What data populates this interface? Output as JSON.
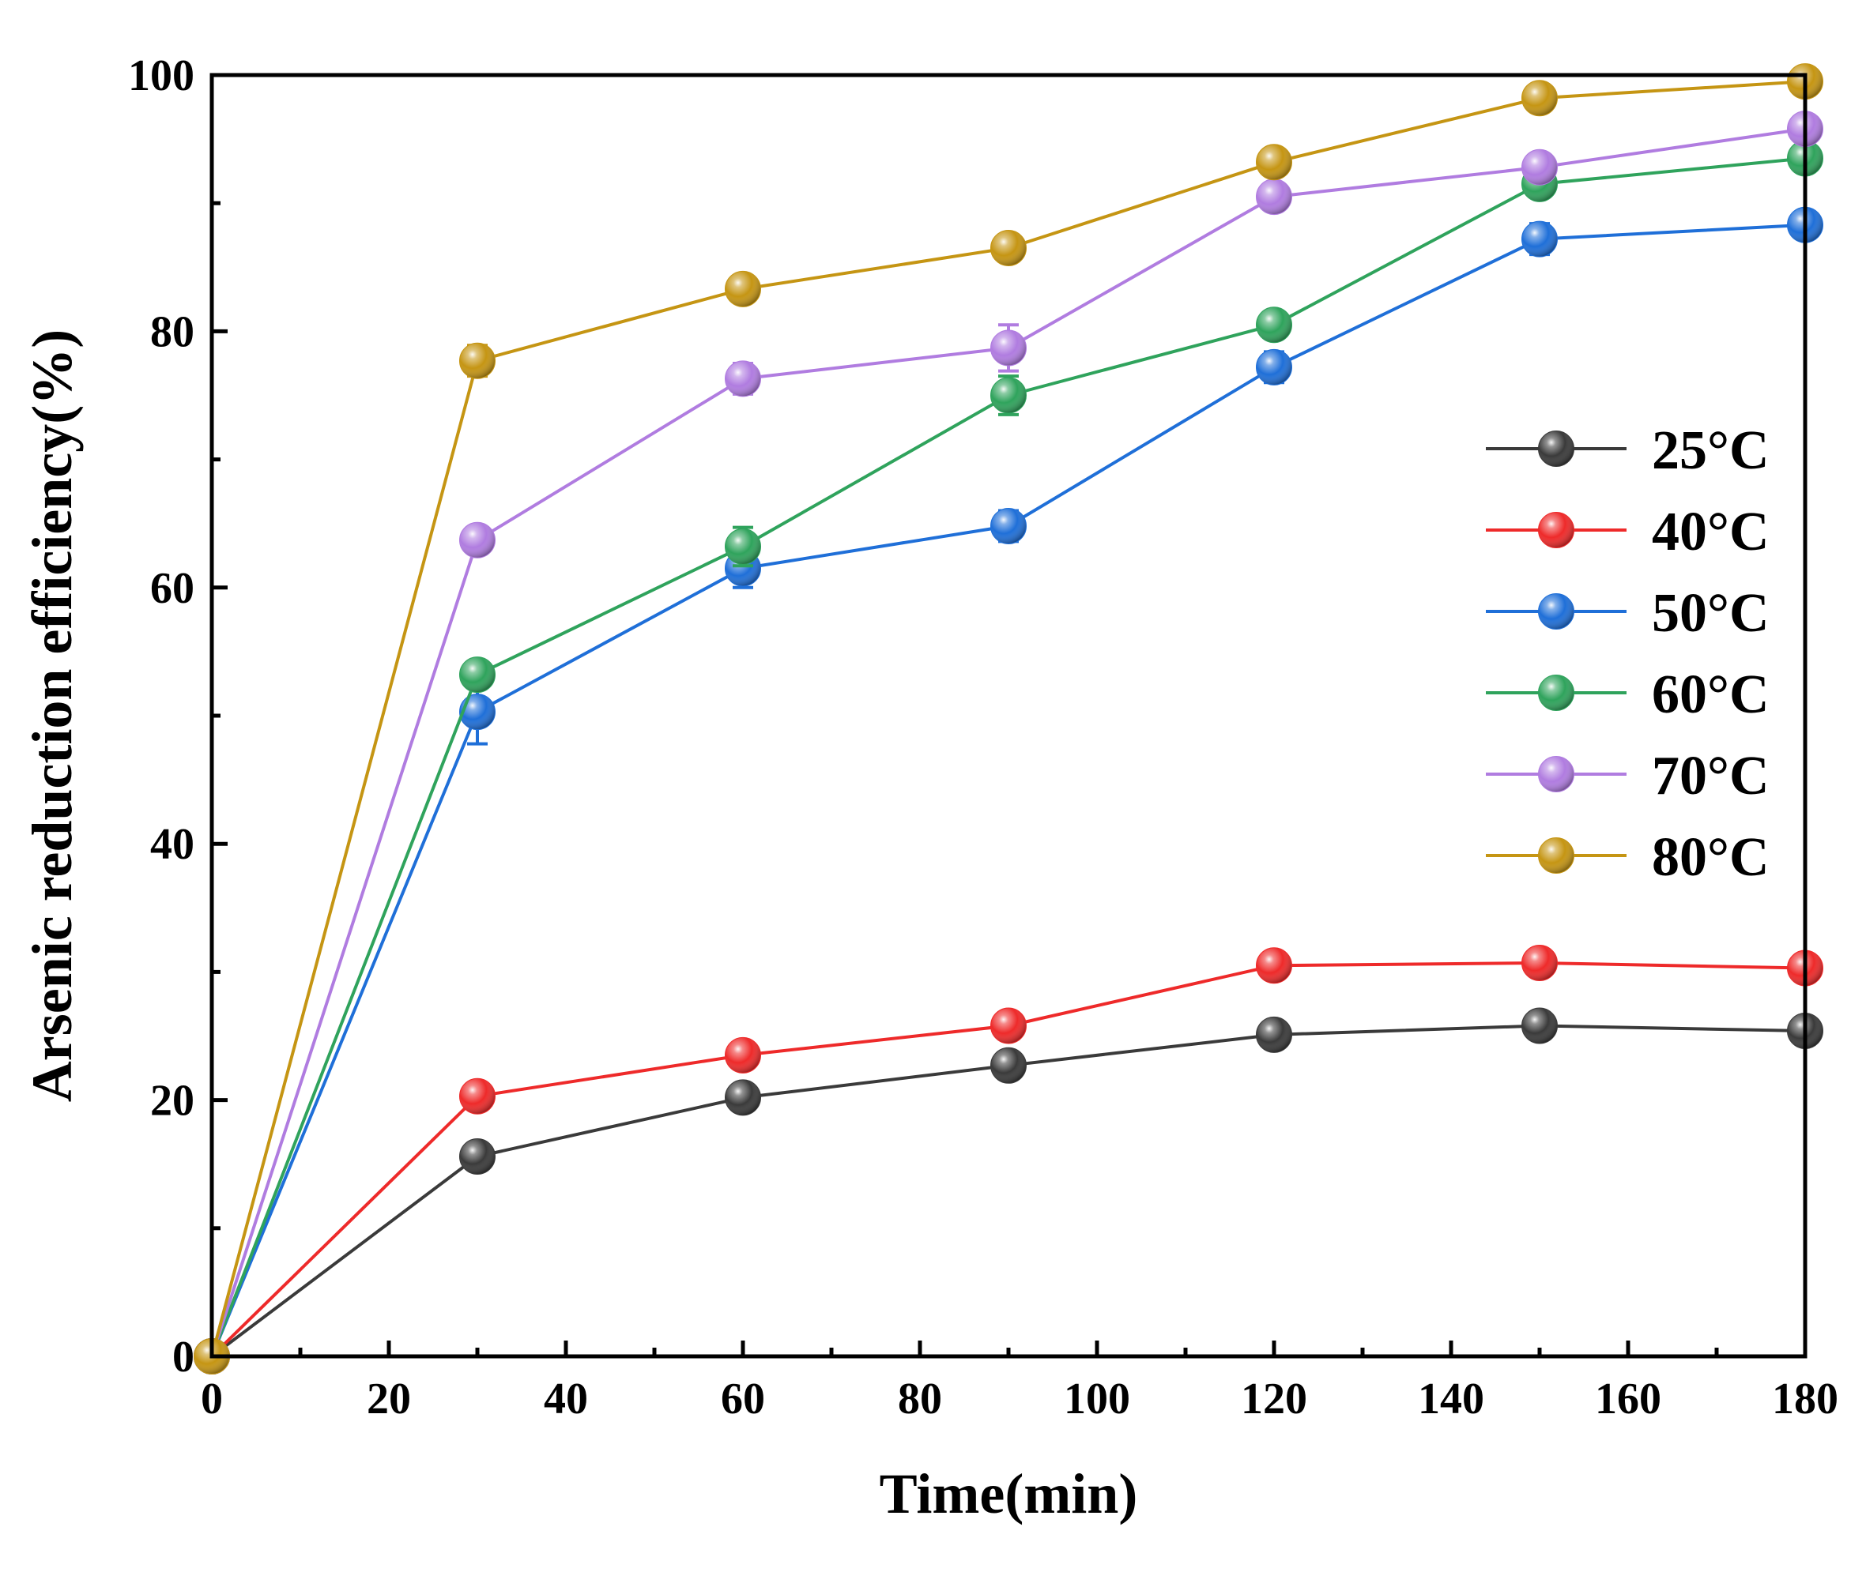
{
  "chart_data": {
    "type": "line",
    "title": "",
    "xlabel": "Time(min)",
    "ylabel": "Arsenic reduction efficiency(%)",
    "xlim": [
      0,
      180
    ],
    "ylim": [
      0,
      100
    ],
    "xticks": [
      0,
      20,
      40,
      60,
      80,
      100,
      120,
      140,
      160,
      180
    ],
    "yticks": [
      0,
      20,
      40,
      60,
      80,
      100
    ],
    "grid": false,
    "legend_position": "right-middle",
    "x": [
      0,
      30,
      60,
      90,
      120,
      150,
      180
    ],
    "series": [
      {
        "name": "25°C",
        "color": "#3a3a3a",
        "values": [
          0,
          15.6,
          20.2,
          22.7,
          25.1,
          25.8,
          25.4
        ],
        "errors": [
          0,
          0.6,
          0.5,
          0.5,
          0.5,
          0.5,
          0.4
        ]
      },
      {
        "name": "40°C",
        "color": "#ee2a2a",
        "values": [
          0,
          20.3,
          23.5,
          25.8,
          30.5,
          30.7,
          30.3
        ],
        "errors": [
          0,
          0.6,
          0.5,
          0.5,
          0.5,
          0.8,
          0.4
        ]
      },
      {
        "name": "50°C",
        "color": "#1f6fd8",
        "values": [
          0,
          50.3,
          61.5,
          64.8,
          77.2,
          87.2,
          88.3
        ],
        "errors": [
          0,
          2.5,
          1.5,
          1.2,
          1.2,
          1.2,
          0.5
        ]
      },
      {
        "name": "60°C",
        "color": "#2fa35c",
        "values": [
          0,
          53.2,
          63.2,
          75.0,
          80.5,
          91.5,
          93.5
        ],
        "errors": [
          0,
          0.5,
          1.5,
          1.5,
          1.0,
          1.0,
          0.5
        ]
      },
      {
        "name": "70°C",
        "color": "#b07ce0",
        "values": [
          0,
          63.7,
          76.3,
          78.7,
          90.5,
          92.8,
          95.8
        ],
        "errors": [
          0,
          1.0,
          1.2,
          1.8,
          1.0,
          0.6,
          0.6
        ]
      },
      {
        "name": "80°C",
        "color": "#c59513",
        "values": [
          0,
          77.7,
          83.3,
          86.5,
          93.2,
          98.2,
          99.5
        ],
        "errors": [
          0,
          1.2,
          0.8,
          0.6,
          0.6,
          0.6,
          0.4
        ]
      }
    ]
  }
}
